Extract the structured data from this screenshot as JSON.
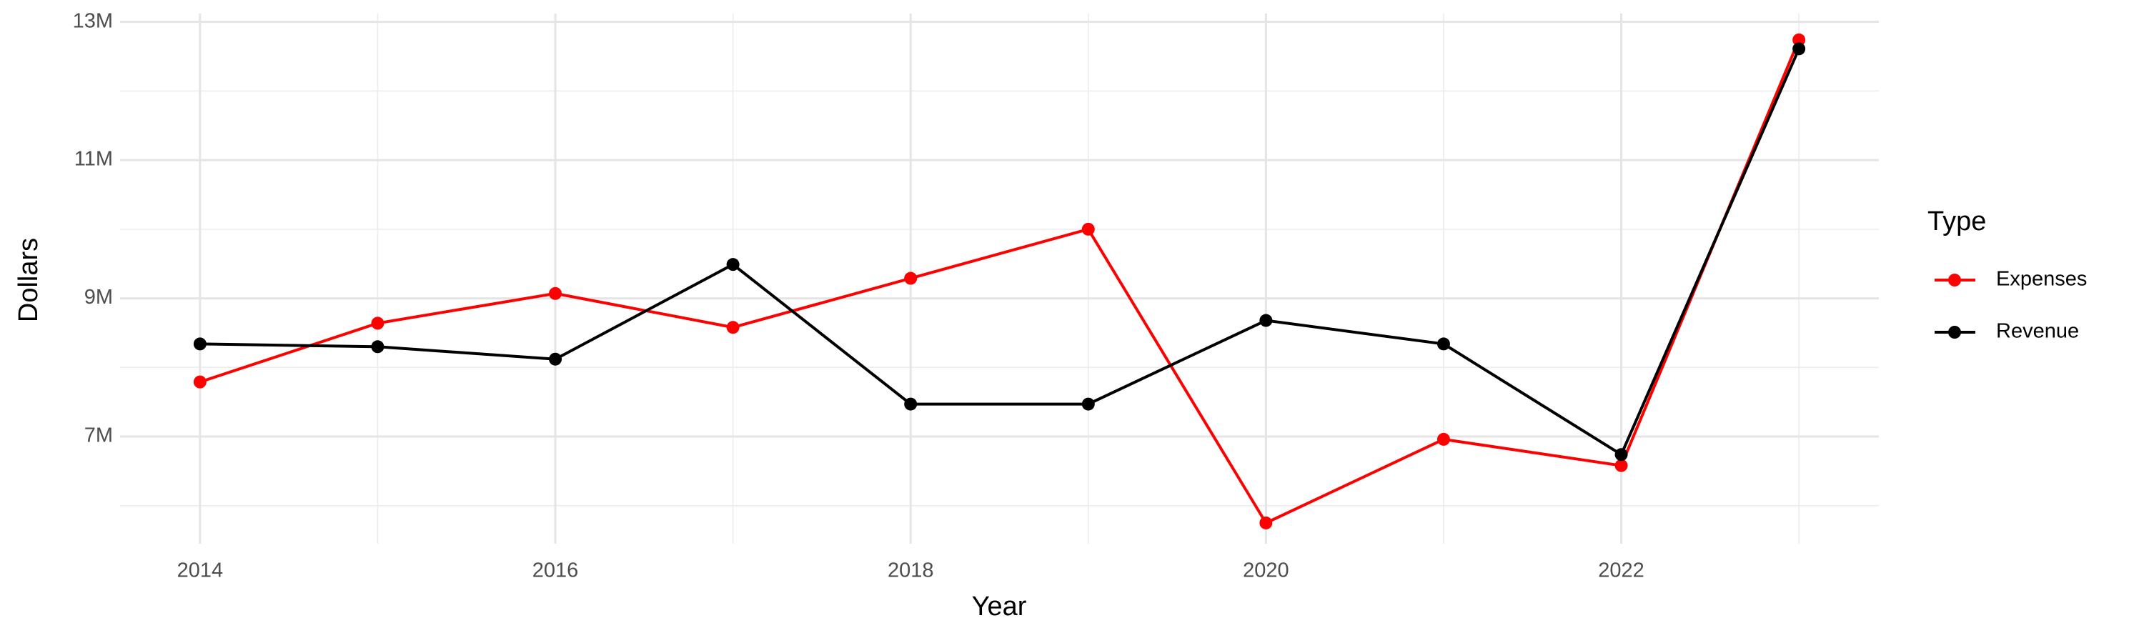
{
  "chart_data": {
    "type": "line",
    "x_label": "Year",
    "y_label": "Dollars",
    "legend_title": "Type",
    "x": [
      2014,
      2015,
      2016,
      2017,
      2018,
      2019,
      2020,
      2021,
      2022,
      2023
    ],
    "series": [
      {
        "name": "Expenses",
        "color": "#ff0000",
        "values": [
          7790000,
          8640000,
          9070000,
          8580000,
          9290000,
          10000000,
          5750000,
          6960000,
          6580000,
          12740000
        ]
      },
      {
        "name": "Revenue",
        "color": "#000000",
        "values": [
          8340000,
          8300000,
          8120000,
          9490000,
          7470000,
          7470000,
          8680000,
          8340000,
          6740000,
          12610000
        ]
      }
    ],
    "xlim": [
      2013.55,
      2023.45
    ],
    "xticks": [
      2014,
      2016,
      2018,
      2020,
      2022
    ],
    "ylim": [
      5450000,
      13120000
    ],
    "yticks": [
      {
        "value": 7000000,
        "label": "7M"
      },
      {
        "value": 9000000,
        "label": "9M"
      },
      {
        "value": 11000000,
        "label": "11M"
      },
      {
        "value": 13000000,
        "label": "13M"
      }
    ],
    "grid": true,
    "legend": "right"
  }
}
